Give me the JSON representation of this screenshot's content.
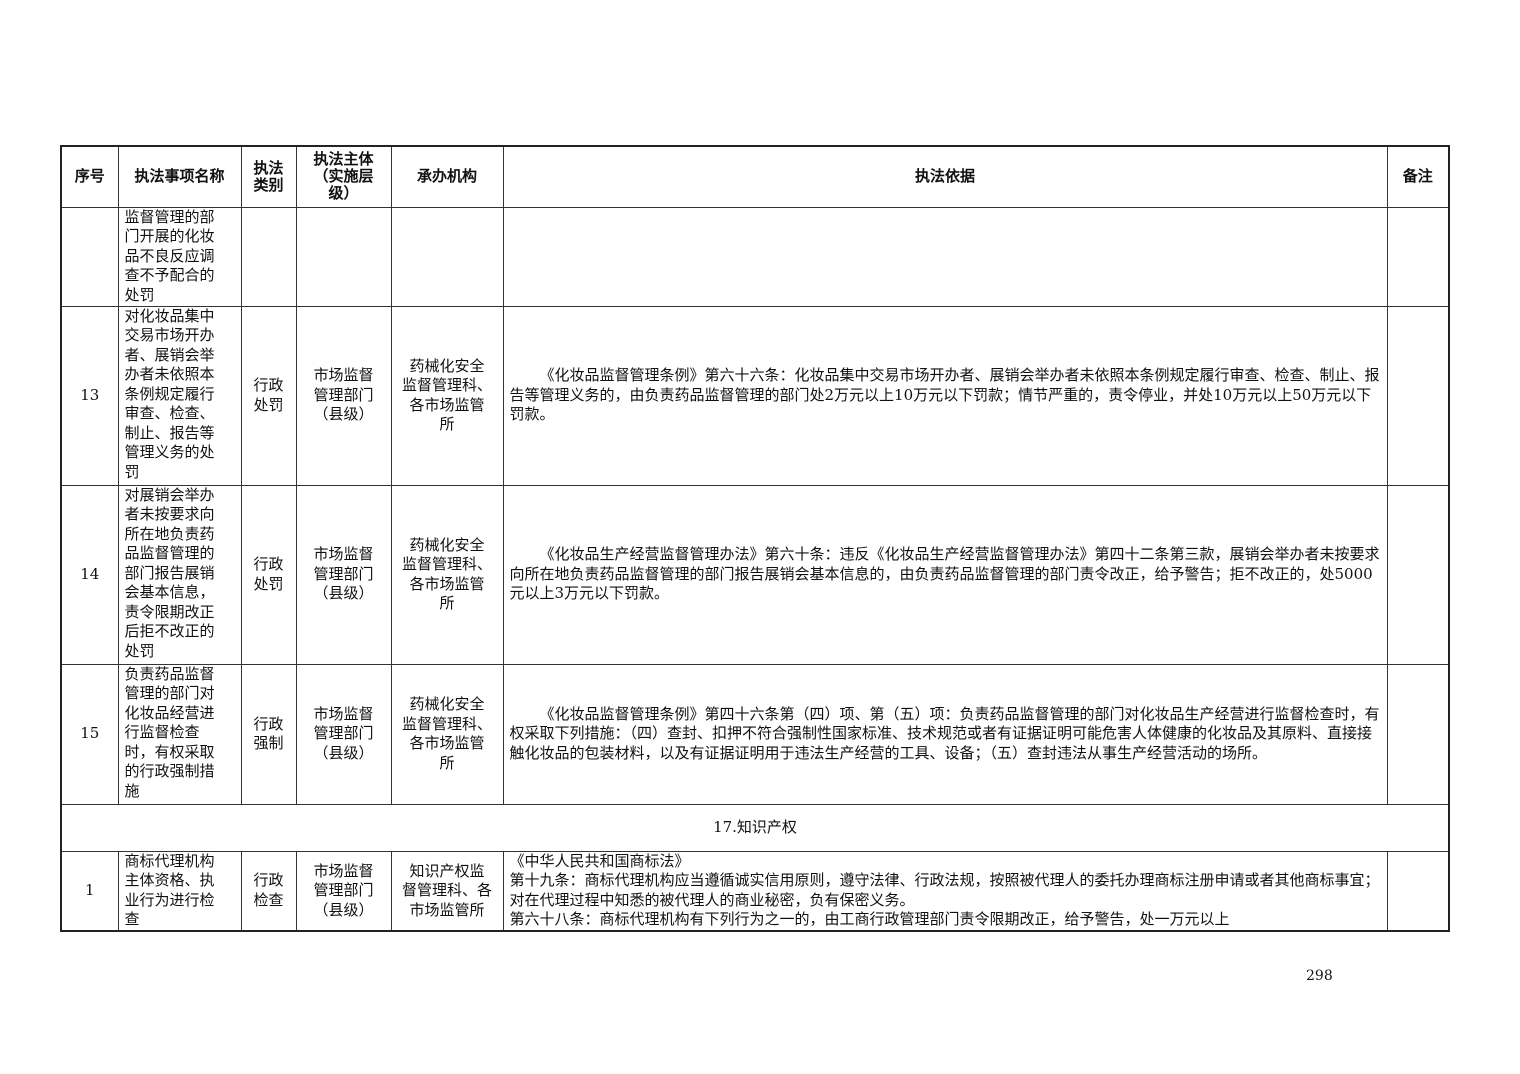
{
  "header": {
    "seq": "序号",
    "name": "执法事项名称",
    "category": "执法\n类别",
    "subject": "执法主体\n（实施层\n级）",
    "agency": "承办机构",
    "basis": "执法依据",
    "remark": "备注"
  },
  "rows": [
    {
      "seq": "",
      "name": "监督管理的部\n门开展的化妆\n品不良反应调\n查不予配合的\n处罚",
      "category": "",
      "subject": "",
      "agency": "",
      "basis": "",
      "remark": ""
    },
    {
      "seq": "13",
      "name": "对化妆品集中\n交易市场开办\n者、展销会举\n办者未依照本\n条例规定履行\n审查、检查、\n制止、报告等\n管理义务的处\n罚",
      "category": "行政\n处罚",
      "subject": "市场监督\n管理部门\n（县级）",
      "agency": "药械化安全\n监督管理科、\n各市场监管\n所",
      "basis": "《化妆品监督管理条例》第六十六条：化妆品集中交易市场开办者、展销会举办者未依照本条例规定履行审查、检查、制止、报告等管理义务的，由负责药品监督管理的部门处2万元以上10万元以下罚款；情节严重的，责令停业，并处10万元以上50万元以下罚款。",
      "remark": ""
    },
    {
      "seq": "14",
      "name": "对展销会举办\n者未按要求向\n所在地负责药\n品监督管理的\n部门报告展销\n会基本信息，\n责令限期改正\n后拒不改正的\n处罚",
      "category": "行政\n处罚",
      "subject": "市场监督\n管理部门\n（县级）",
      "agency": "药械化安全\n监督管理科、\n各市场监管\n所",
      "basis": "《化妆品生产经营监督管理办法》第六十条：违反《化妆品生产经营监督管理办法》第四十二条第三款，展销会举办者未按要求向所在地负责药品监督管理的部门报告展销会基本信息的，由负责药品监督管理的部门责令改正，给予警告；拒不改正的，处5000元以上3万元以下罚款。",
      "remark": ""
    },
    {
      "seq": "15",
      "name": "负责药品监督\n管理的部门对\n化妆品经营进\n行监督检查\n时，有权采取\n的行政强制措\n施",
      "category": "行政\n强制",
      "subject": "市场监督\n管理部门\n（县级）",
      "agency": "药械化安全\n监督管理科、\n各市场监管\n所",
      "basis": "《化妆品监督管理条例》第四十六条第（四）项、第（五）项：负责药品监督管理的部门对化妆品生产经营进行监督检查时，有权采取下列措施：（四）查封、扣押不符合强制性国家标准、技术规范或者有证据证明可能危害人体健康的化妆品及其原料、直接接触化妆品的包装材料，以及有证据证明用于违法生产经营的工具、设备；（五）查封违法从事生产经营活动的场所。",
      "remark": ""
    }
  ],
  "section": {
    "title": "17.知识产权"
  },
  "section_rows": [
    {
      "seq": "1",
      "name": "商标代理机构\n主体资格、执\n业行为进行检\n查",
      "category": "行政\n检查",
      "subject": "市场监督\n管理部门\n（县级）",
      "agency": "知识产权监\n督管理科、各\n市场监管所",
      "basis_lines": [
        "《中华人民共和国商标法》",
        "第十九条：商标代理机构应当遵循诚实信用原则，遵守法律、行政法规，按照被代理人的委托办理商标注册申请或者其他商标事宜；对在代理过程中知悉的被代理人的商业秘密，负有保密义务。",
        "第六十八条：商标代理机构有下列行为之一的，由工商行政管理部门责令限期改正，给予警告，处一万元以上"
      ],
      "remark": ""
    }
  ],
  "page_number": "298"
}
